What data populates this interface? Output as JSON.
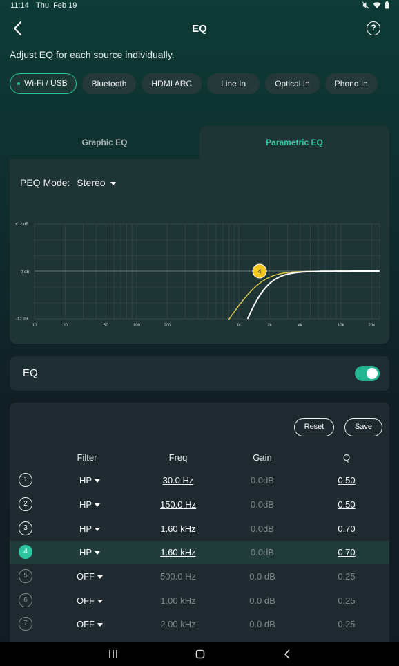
{
  "status_bar": {
    "time": "11:14",
    "date": "Thu, Feb 19"
  },
  "header": {
    "title": "EQ",
    "help_label": "?"
  },
  "subtitle": "Adjust EQ for each source individually.",
  "sources": [
    {
      "label": "Wi-Fi / USB",
      "active": true
    },
    {
      "label": "Bluetooth",
      "active": false
    },
    {
      "label": "HDMI ARC",
      "active": false
    },
    {
      "label": "Line In",
      "active": false
    },
    {
      "label": "Optical In",
      "active": false
    },
    {
      "label": "Phono In",
      "active": false
    }
  ],
  "tabs": {
    "graphic": "Graphic EQ",
    "parametric": "Parametric EQ",
    "active": "parametric"
  },
  "peq_mode": {
    "label": "PEQ Mode:",
    "value": "Stereo"
  },
  "graph": {
    "y_labels": [
      "+12 dB",
      "0 dB",
      "-12 dB"
    ],
    "x_labels": [
      "10",
      "20",
      "50",
      "100",
      "200",
      "1k",
      "2k",
      "4k",
      "10k",
      "20k"
    ],
    "marker_label": "4",
    "colors": {
      "active_curve": "#e4cf4a",
      "total_curve": "#ffffff",
      "marker": "#f2c81e"
    }
  },
  "eq_toggle": {
    "label": "EQ",
    "on": true
  },
  "table": {
    "reset_label": "Reset",
    "save_label": "Save",
    "headers": {
      "filter": "Filter",
      "freq": "Freq",
      "gain": "Gain",
      "q": "Q"
    },
    "rows": [
      {
        "num": "1",
        "filter": "HP",
        "freq": "30.0 Hz",
        "gain": "0.0dB",
        "q": "0.50",
        "state": "on"
      },
      {
        "num": "2",
        "filter": "HP",
        "freq": "150.0 Hz",
        "gain": "0.0dB",
        "q": "0.50",
        "state": "on"
      },
      {
        "num": "3",
        "filter": "HP",
        "freq": "1.60 kHz",
        "gain": "0.0dB",
        "q": "0.70",
        "state": "on"
      },
      {
        "num": "4",
        "filter": "HP",
        "freq": "1.60 kHz",
        "gain": "0.0dB",
        "q": "0.70",
        "state": "selected"
      },
      {
        "num": "5",
        "filter": "OFF",
        "freq": "500.0 Hz",
        "gain": "0.0 dB",
        "q": "0.25",
        "state": "off"
      },
      {
        "num": "6",
        "filter": "OFF",
        "freq": "1.00 kHz",
        "gain": "0.0 dB",
        "q": "0.25",
        "state": "off"
      },
      {
        "num": "7",
        "filter": "OFF",
        "freq": "2.00 kHz",
        "gain": "0.0 dB",
        "q": "0.25",
        "state": "off"
      }
    ]
  },
  "colors": {
    "accent": "#29c6a0",
    "card": "#1e3435"
  }
}
